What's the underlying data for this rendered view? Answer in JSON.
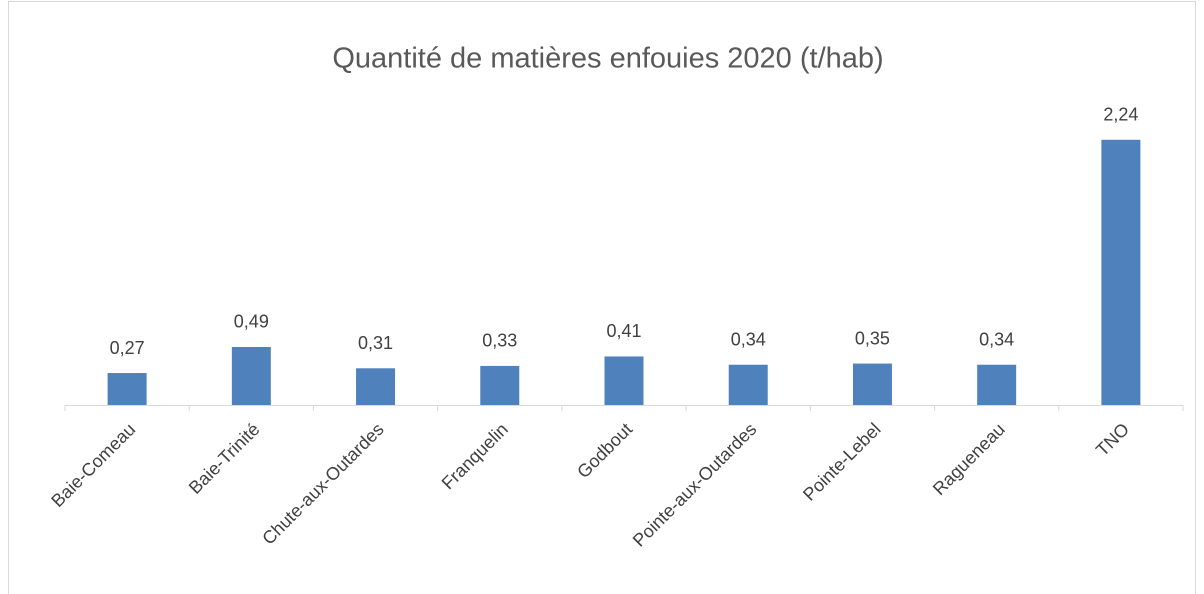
{
  "chart_data": {
    "type": "bar",
    "title": "Quantité de matières enfouies 2020 (t/hab)",
    "categories": [
      "Baie-Comeau",
      "Baie-Trinité",
      "Chute-aux-Outardes",
      "Franquelin",
      "Godbout",
      "Pointe-aux-Outardes",
      "Pointe-Lebel",
      "Ragueneau",
      "TNO"
    ],
    "values": [
      0.27,
      0.49,
      0.31,
      0.33,
      0.41,
      0.34,
      0.35,
      0.34,
      2.24
    ],
    "value_labels": [
      "0,27",
      "0,49",
      "0,31",
      "0,33",
      "0,41",
      "0,34",
      "0,35",
      "0,34",
      "2,24"
    ],
    "color": "#4f81bd",
    "ylim": [
      0,
      2.5
    ]
  }
}
